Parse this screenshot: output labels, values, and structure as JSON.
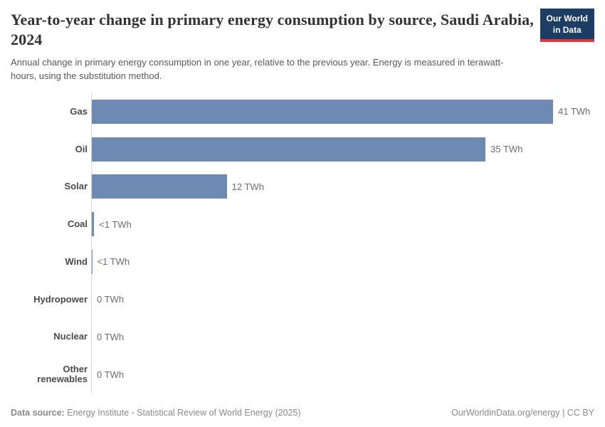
{
  "header": {
    "title": "Year-to-year change in primary energy consumption by source, Saudi Arabia, 2024",
    "subtitle": "Annual change in primary energy consumption in one year, relative to the previous year. Energy is measured in terawatt-hours, using the substitution method.",
    "logo": {
      "line1": "Our World",
      "line2": "in Data"
    }
  },
  "chart_data": {
    "type": "bar",
    "orientation": "horizontal",
    "title": "Year-to-year change in primary energy consumption by source, Saudi Arabia, 2024",
    "categories": [
      "Gas",
      "Oil",
      "Solar",
      "Coal",
      "Wind",
      "Hydropower",
      "Nuclear",
      "Other renewables"
    ],
    "values": [
      41,
      35,
      12,
      0.2,
      0.03,
      0,
      0,
      0
    ],
    "value_labels": [
      "41 TWh",
      "35 TWh",
      "12 TWh",
      "<1 TWh",
      "<1 TWh",
      "0 TWh",
      "0 TWh",
      "0 TWh"
    ],
    "unit": "TWh",
    "xlim": [
      0,
      41
    ],
    "grid": false,
    "legend": "none",
    "bar_color": "#6e8ab3",
    "axis_color": "#d7d7d7"
  },
  "footer": {
    "data_source_label": "Data source:",
    "data_source_text": " Energy Institute - Statistical Review of World Energy (2025)",
    "right": "OurWorldinData.org/energy | CC BY"
  },
  "colors": {
    "bar": "#6e8ab3",
    "logo_background": "#1d3d63",
    "logo_accent": "#e0373f",
    "title_text": "#333333",
    "subtitle_text": "#595959",
    "label_text": "#4a4a4a",
    "value_text": "#6d6d6d",
    "footer_text": "#8a8a8a"
  }
}
